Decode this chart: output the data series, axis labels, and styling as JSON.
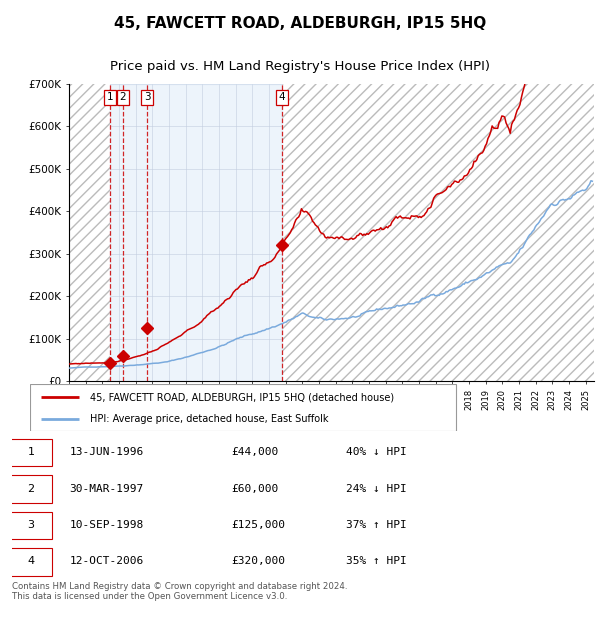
{
  "title": "45, FAWCETT ROAD, ALDEBURGH, IP15 5HQ",
  "subtitle": "Price paid vs. HM Land Registry's House Price Index (HPI)",
  "ylim": [
    0,
    700000
  ],
  "yticks": [
    0,
    100000,
    200000,
    300000,
    400000,
    500000,
    600000,
    700000
  ],
  "ytick_labels": [
    "£0",
    "£100K",
    "£200K",
    "£300K",
    "£400K",
    "£500K",
    "£600K",
    "£700K"
  ],
  "sales": [
    {
      "num": 1,
      "date_dec": 1996.45,
      "price": 44000,
      "label": "1"
    },
    {
      "num": 2,
      "date_dec": 1997.24,
      "price": 60000,
      "label": "2"
    },
    {
      "num": 3,
      "date_dec": 1998.69,
      "price": 125000,
      "label": "3"
    },
    {
      "num": 4,
      "date_dec": 2006.79,
      "price": 320000,
      "label": "4"
    }
  ],
  "sale_color": "#cc0000",
  "hpi_color": "#7aaadd",
  "vline_color": "#cc0000",
  "shade_color": "#d8e8f8",
  "grid_color": "#b0b8cc",
  "legend_entries": [
    "45, FAWCETT ROAD, ALDEBURGH, IP15 5HQ (detached house)",
    "HPI: Average price, detached house, East Suffolk"
  ],
  "table_rows": [
    [
      "1",
      "13-JUN-1996",
      "£44,000",
      "40% ↓ HPI"
    ],
    [
      "2",
      "30-MAR-1997",
      "£60,000",
      "24% ↓ HPI"
    ],
    [
      "3",
      "10-SEP-1998",
      "£125,000",
      "37% ↑ HPI"
    ],
    [
      "4",
      "12-OCT-2006",
      "£320,000",
      "35% ↑ HPI"
    ]
  ],
  "footer": "Contains HM Land Registry data © Crown copyright and database right 2024.\nThis data is licensed under the Open Government Licence v3.0."
}
